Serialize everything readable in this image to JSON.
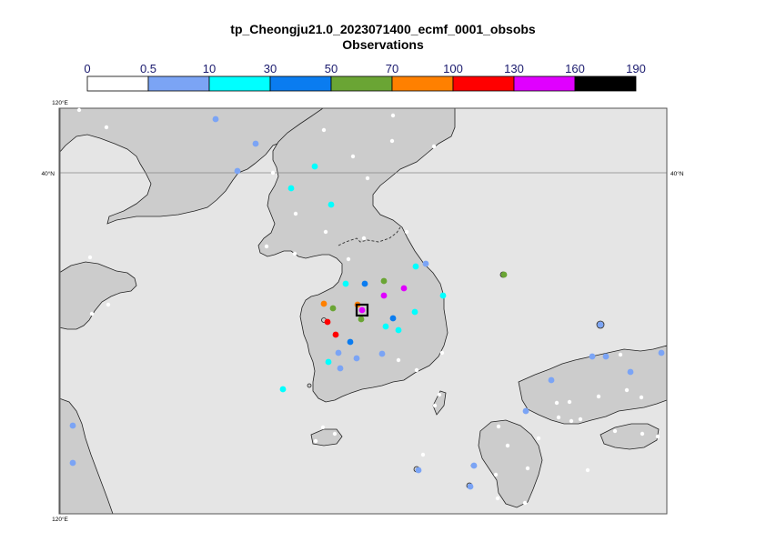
{
  "title": "tp_Cheongju21.0_2023071400_ecmf_0001_obsobs",
  "subtitle": "Observations",
  "legend": {
    "ticks": [
      "0",
      "0.5",
      "10",
      "30",
      "50",
      "70",
      "100",
      "130",
      "160",
      "190"
    ],
    "colors": [
      "#ffffff",
      "#7ba4f5",
      "#00ffff",
      "#0a7cf0",
      "#6aa534",
      "#ff8000",
      "#ff0000",
      "#e000ff",
      "#000000"
    ]
  },
  "map": {
    "lat_label_left": "40°N",
    "lat_label_right": "40°N",
    "lon_label_top": "120°E",
    "lon_label_bottom": "120°E",
    "land_color": "#cccccc",
    "sea_color": "#e5e5e5"
  },
  "chart_data": {
    "type": "scatter",
    "title": "tp_Cheongju21.0_2023071400_ecmf_0001_obsobs",
    "subtitle": "Observations",
    "highlight_station": "Cheongju",
    "color_bins": [
      "0-0.5",
      "0.5-10",
      "10-30",
      "30-50",
      "50-70",
      "70-100",
      "100-130",
      "130-160",
      "160-190"
    ]
  }
}
